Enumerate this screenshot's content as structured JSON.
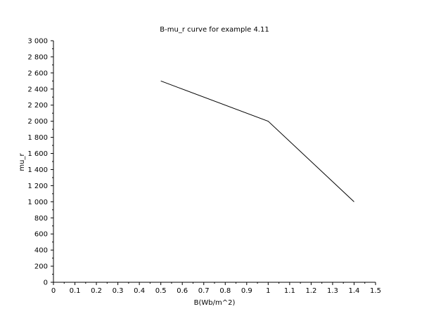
{
  "chart_data": {
    "type": "line",
    "title": "B-mu_r curve for example 4.11",
    "xlabel": "B(Wb/m^2)",
    "ylabel": "mu_r",
    "xlim": [
      0,
      1.5
    ],
    "ylim": [
      0,
      3000
    ],
    "x_ticks": [
      "0",
      "0.1",
      "0.2",
      "0.3",
      "0.4",
      "0.5",
      "0.6",
      "0.7",
      "0.8",
      "0.9",
      "1",
      "1.1",
      "1.2",
      "1.3",
      "1.4",
      "1.5"
    ],
    "x_tick_values": [
      0,
      0.1,
      0.2,
      0.3,
      0.4,
      0.5,
      0.6,
      0.7,
      0.8,
      0.9,
      1.0,
      1.1,
      1.2,
      1.3,
      1.4,
      1.5
    ],
    "y_ticks": [
      "0",
      "200",
      "400",
      "600",
      "800",
      "1 000",
      "1 200",
      "1 400",
      "1 600",
      "1 800",
      "2 000",
      "2 200",
      "2 400",
      "2 600",
      "2 800",
      "3 000"
    ],
    "y_tick_values": [
      0,
      200,
      400,
      600,
      800,
      1000,
      1200,
      1400,
      1600,
      1800,
      2000,
      2200,
      2400,
      2600,
      2800,
      3000
    ],
    "grid": false,
    "series": [
      {
        "x": [
          0.5,
          1.0,
          1.4
        ],
        "y": [
          2500,
          2000,
          1000
        ],
        "color": "#000000"
      }
    ]
  }
}
